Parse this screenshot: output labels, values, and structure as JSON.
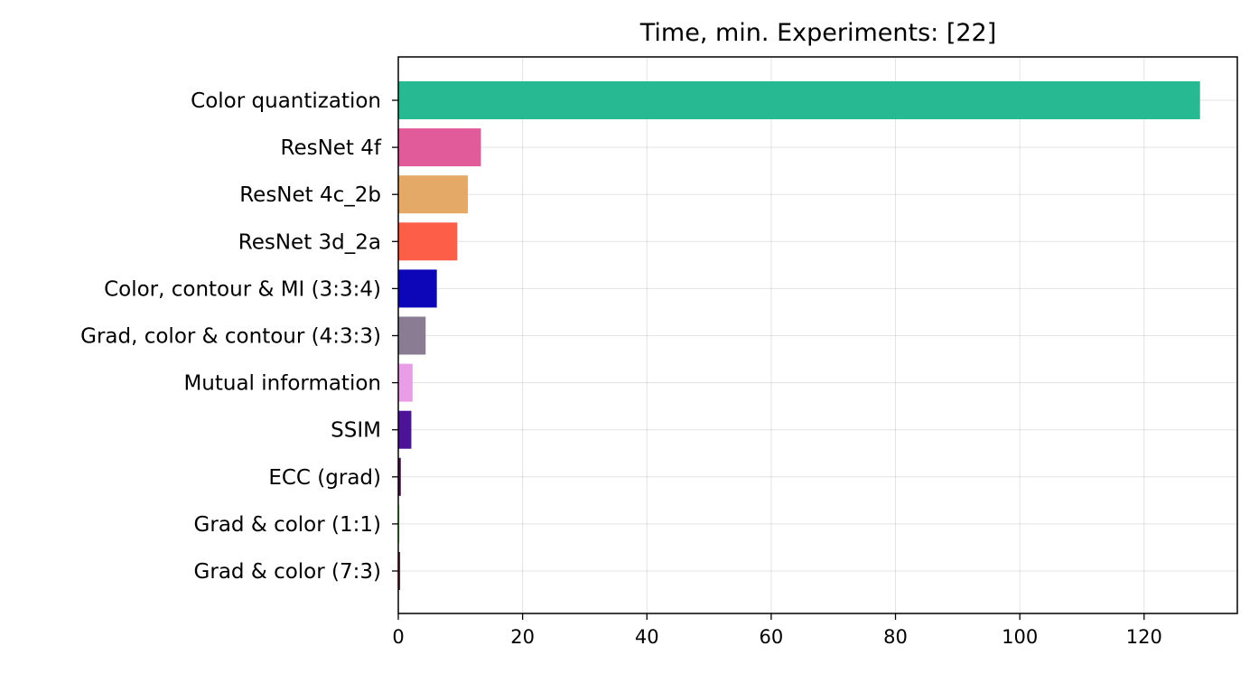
{
  "chart_data": {
    "type": "bar",
    "orientation": "horizontal",
    "title": "Time, min. Experiments: [22]",
    "xlabel": "",
    "ylabel": "",
    "xlim": [
      0,
      135
    ],
    "xticks": [
      0,
      20,
      40,
      60,
      80,
      100,
      120
    ],
    "grid": true,
    "categories": [
      "Color quantization",
      "ResNet 4f",
      "ResNet 4c_2b",
      "ResNet 3d_2a",
      "Color, contour & MI (3:3:4)",
      "Grad, color & contour (4:3:3)",
      "Mutual information",
      "SSIM",
      "ECC (grad)",
      "Grad & color (1:1)",
      "Grad & color (7:3)"
    ],
    "values": [
      129,
      13.3,
      11.2,
      9.5,
      6.2,
      4.4,
      2.3,
      2.1,
      0.4,
      0.2,
      0.3
    ],
    "colors": [
      "#27b991",
      "#e15b9b",
      "#e4a967",
      "#fc5e48",
      "#0d06b9",
      "#8a7c93",
      "#e99de6",
      "#4c1396",
      "#450a3f",
      "#9af27f",
      "#5a2a35"
    ]
  }
}
